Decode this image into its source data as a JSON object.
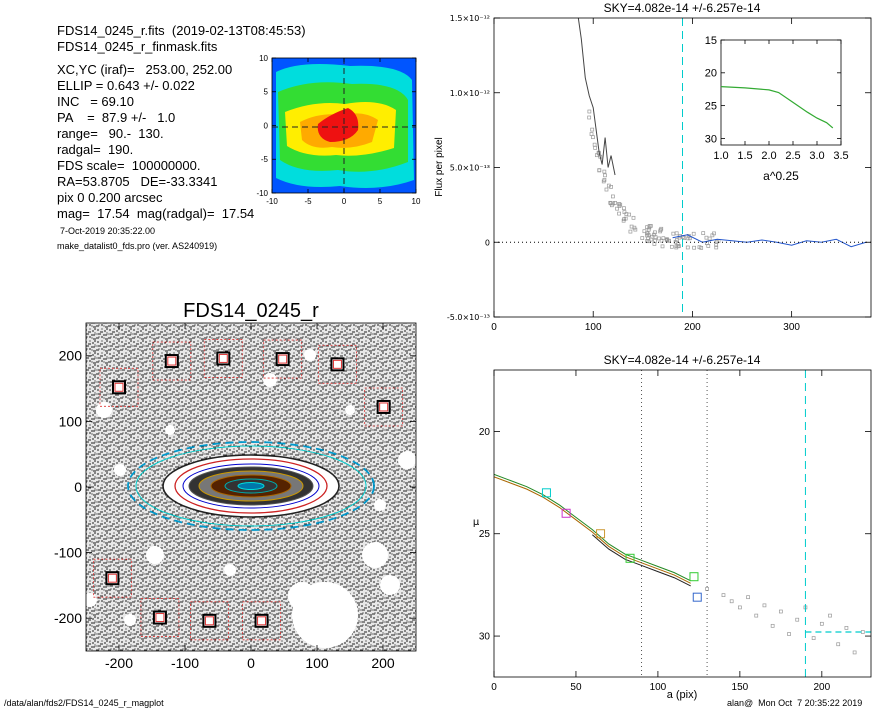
{
  "header": {
    "lines": [
      "FDS14_0245_r.fits  (2019-02-13T08:45:53)",
      "FDS14_0245_r_finmask.fits",
      "XC,YC (iraf)=   253.00, 252.00",
      "ELLIP = 0.643 +/- 0.022",
      "INC   = 69.10",
      "PA    =  87.9 +/-   1.0",
      "range=   90.-  130.",
      "radgal=  190.",
      "FDS scale=  100000000.",
      "RA=53.8705   DE=-33.3341",
      "pix 0 0.200 arcsec",
      "mag=  17.54  mag(radgal)=  17.54"
    ],
    "date": "7-Oct-2019 20:35:22.00",
    "program": "make_datalist0_fds.pro (ver. AS240919)"
  },
  "footer": {
    "path": "/data/alan/fds2/FDS14_0245_r_magplot",
    "user": "alan@  Mon Oct  7 20:35:22 2019"
  },
  "colors": {
    "grid": "#000000",
    "cyan": "#00dddd",
    "mask": "#dd3333",
    "grey": "#a0a0a0"
  },
  "chart_data": [
    {
      "type": "heatmap",
      "xlim": [
        -10,
        10
      ],
      "ylim": [
        -10,
        10
      ],
      "xticks": [
        -10,
        -5,
        0,
        5,
        10
      ],
      "yticks": [
        -10,
        -5,
        0,
        5,
        10
      ],
      "levels": [
        "blue",
        "cyan",
        "green",
        "yellow",
        "orange",
        "red"
      ]
    },
    {
      "type": "image",
      "title": "FDS14_0245_r",
      "xlim": [
        -250,
        250
      ],
      "ylim": [
        -250,
        250
      ],
      "xticks": [
        -200,
        -100,
        0,
        100,
        200
      ],
      "yticks": [
        -200,
        -100,
        0,
        100,
        200
      ],
      "ellipse": {
        "center": [
          0,
          0
        ],
        "ellip": 0.643,
        "pa": 87.9,
        "radgal": 190,
        "range": [
          90,
          130
        ]
      },
      "masked_sources": [
        {
          "x": -200,
          "y": 152
        },
        {
          "x": -120,
          "y": 192
        },
        {
          "x": -42,
          "y": 196
        },
        {
          "x": 48,
          "y": 195
        },
        {
          "x": 131,
          "y": 187
        },
        {
          "x": 201,
          "y": 122
        },
        {
          "x": -210,
          "y": -139
        },
        {
          "x": -138,
          "y": -199
        },
        {
          "x": -63,
          "y": -204
        },
        {
          "x": 16,
          "y": -204
        }
      ]
    },
    {
      "type": "line",
      "title": "SKY=4.082e-14 +/-6.257e-14",
      "ylabel": "Flux per pixel",
      "xlim": [
        0,
        380
      ],
      "ylim": [
        -5e-13,
        1.5e-12
      ],
      "xticks": [
        0,
        100,
        200,
        300
      ],
      "ytick_labels": [
        "-5.0×10⁻¹³",
        "0",
        "5.0×10⁻¹³",
        "1.0×10⁻¹²",
        "1.5×10⁻¹²"
      ],
      "yticks": [
        -5e-13,
        0,
        5e-13,
        1e-12,
        1.5e-12
      ],
      "sky_line_x": 190,
      "profile": [
        [
          85,
          1.5e-12
        ],
        [
          88,
          1.36e-12
        ],
        [
          92,
          1.1e-12
        ],
        [
          96,
          9.8e-13
        ],
        [
          100,
          9e-13
        ],
        [
          103,
          7.5e-13
        ],
        [
          106,
          6e-13
        ],
        [
          109,
          5.2e-13
        ],
        [
          112,
          7e-13
        ],
        [
          115,
          5e-13
        ],
        [
          118,
          5.8e-13
        ],
        [
          122,
          4.5e-13
        ]
      ],
      "binned": [
        [
          180,
          3e-14
        ],
        [
          195,
          5e-14
        ],
        [
          210,
          0.0
        ],
        [
          225,
          2e-14
        ],
        [
          240,
          1e-14
        ],
        [
          255,
          0.0
        ],
        [
          270,
          1.5e-14
        ],
        [
          285,
          0.0
        ],
        [
          300,
          -2e-14
        ],
        [
          315,
          1e-14
        ],
        [
          330,
          0.0
        ],
        [
          345,
          2e-14
        ],
        [
          360,
          -3e-14
        ],
        [
          375,
          0.0
        ]
      ],
      "inset": {
        "xlabel": "a^0.25",
        "xlim": [
          1.0,
          3.5
        ],
        "ylim": [
          31,
          15
        ],
        "xticks": [
          1.0,
          1.5,
          2.0,
          2.5,
          3.0,
          3.5
        ],
        "yticks": [
          15,
          20,
          25,
          30
        ],
        "profile": [
          [
            1.0,
            22.1
          ],
          [
            1.5,
            22.3
          ],
          [
            2.0,
            22.6
          ],
          [
            2.2,
            23.0
          ],
          [
            2.5,
            24.5
          ],
          [
            2.8,
            26.0
          ],
          [
            3.0,
            26.9
          ],
          [
            3.2,
            27.6
          ],
          [
            3.33,
            28.4
          ]
        ]
      }
    },
    {
      "type": "line",
      "title": "SKY=4.082e-14 +/-6.257e-14",
      "xlabel": "a (pix)",
      "ylabel": "μ",
      "xlim": [
        0,
        230
      ],
      "ylim": [
        32,
        17
      ],
      "xticks": [
        0,
        50,
        100,
        150,
        200
      ],
      "yticks": [
        20,
        25,
        30
      ],
      "vlines_dotted": [
        90,
        130
      ],
      "sky_line_x": 190,
      "sky_level_mu": 29.8,
      "profile": [
        [
          0,
          22.1
        ],
        [
          10,
          22.4
        ],
        [
          20,
          22.7
        ],
        [
          30,
          23.1
        ],
        [
          40,
          23.6
        ],
        [
          50,
          24.2
        ],
        [
          60,
          24.8
        ],
        [
          70,
          25.5
        ],
        [
          80,
          26.0
        ],
        [
          90,
          26.3
        ],
        [
          100,
          26.6
        ],
        [
          110,
          26.9
        ],
        [
          120,
          27.3
        ]
      ],
      "squares": [
        [
          32,
          23.0
        ],
        [
          44,
          24.0
        ],
        [
          65,
          25.0
        ],
        [
          83,
          26.2
        ],
        [
          122,
          27.1
        ],
        [
          124,
          28.1
        ]
      ],
      "scatter": [
        [
          130,
          27.7
        ],
        [
          140,
          28.0
        ],
        [
          145,
          28.3
        ],
        [
          150,
          28.6
        ],
        [
          155,
          28.1
        ],
        [
          160,
          29.0
        ],
        [
          165,
          28.5
        ],
        [
          170,
          29.5
        ],
        [
          175,
          28.8
        ],
        [
          180,
          29.9
        ],
        [
          185,
          29.2
        ],
        [
          190,
          28.6
        ],
        [
          195,
          30.1
        ],
        [
          200,
          29.4
        ],
        [
          205,
          29.0
        ],
        [
          210,
          30.4
        ],
        [
          215,
          29.6
        ],
        [
          220,
          30.8
        ],
        [
          225,
          29.8
        ]
      ]
    }
  ]
}
